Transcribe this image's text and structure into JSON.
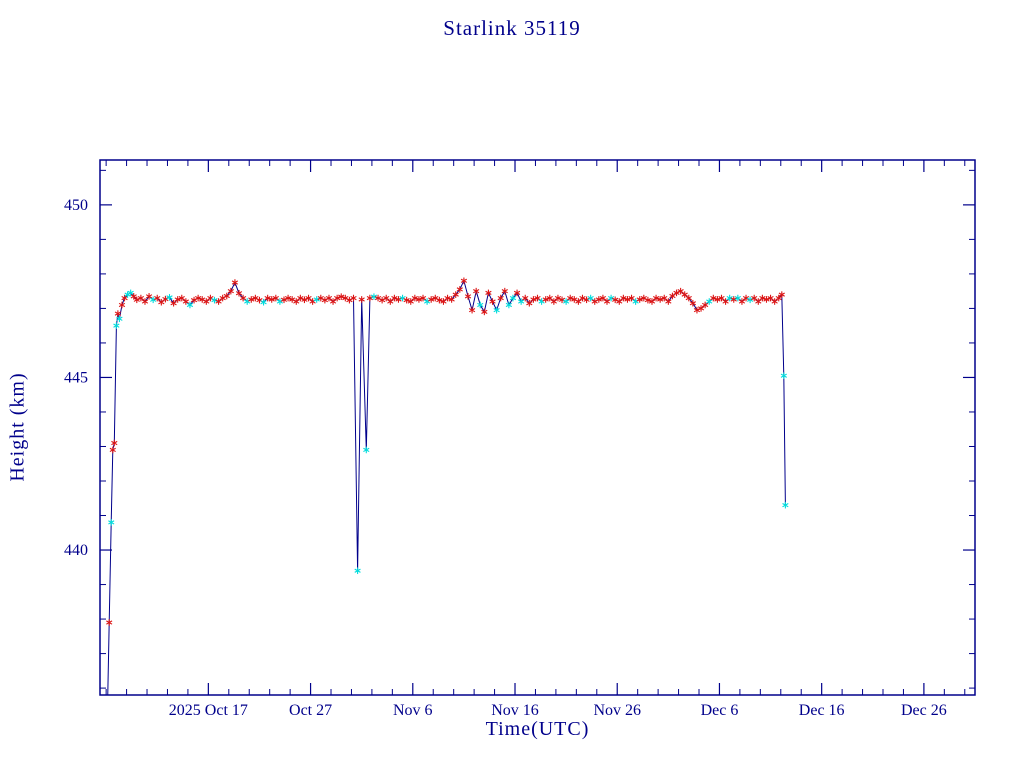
{
  "chart_data": {
    "type": "line",
    "title": "Starlink 35119",
    "xlabel": "Time(UTC)",
    "ylabel": "Height (km)",
    "x_unit": "days since 2025-10-07 00:00 UTC",
    "xlim": [
      -0.6,
      85.0
    ],
    "ylim": [
      435.8,
      451.3
    ],
    "grid": false,
    "legend": "none",
    "x_major_ticks": [
      {
        "value": 10,
        "label": "2025 Oct 17"
      },
      {
        "value": 20,
        "label": "Oct 27"
      },
      {
        "value": 30,
        "label": "Nov 6"
      },
      {
        "value": 40,
        "label": "Nov 16"
      },
      {
        "value": 50,
        "label": "Nov 26"
      },
      {
        "value": 60,
        "label": "Dec 6"
      },
      {
        "value": 70,
        "label": "Dec 16"
      },
      {
        "value": 80,
        "label": "Dec 26"
      }
    ],
    "x_minor_step": 2,
    "y_major_ticks": [
      {
        "value": 440,
        "label": "440"
      },
      {
        "value": 445,
        "label": "445"
      },
      {
        "value": 450,
        "label": "450"
      }
    ],
    "y_minor_step": 1,
    "colors": {
      "axis": "#00008B",
      "line": "#00008B",
      "marker_red": "#DC1414",
      "marker_cyan": "#00DCDC",
      "background": "#FFFFFF"
    },
    "marker": "asterisk",
    "series": [
      {
        "name": "height-km",
        "points": [
          [
            0.15,
            435.7,
            "n"
          ],
          [
            0.3,
            437.9,
            "r"
          ],
          [
            0.5,
            440.8,
            "c"
          ],
          [
            0.65,
            442.9,
            "r"
          ],
          [
            0.8,
            443.1,
            "r"
          ],
          [
            1.0,
            446.5,
            "c"
          ],
          [
            1.15,
            446.85,
            "r"
          ],
          [
            1.3,
            446.7,
            "c"
          ],
          [
            1.55,
            447.1,
            "r"
          ],
          [
            1.8,
            447.3,
            "r"
          ],
          [
            2.1,
            447.4,
            "c"
          ],
          [
            2.4,
            447.45,
            "c"
          ],
          [
            2.7,
            447.35,
            "r"
          ],
          [
            3.0,
            447.25,
            "r"
          ],
          [
            3.4,
            447.3,
            "r"
          ],
          [
            3.8,
            447.2,
            "r"
          ],
          [
            4.2,
            447.35,
            "r"
          ],
          [
            4.6,
            447.25,
            "c"
          ],
          [
            5.0,
            447.3,
            "r"
          ],
          [
            5.4,
            447.18,
            "r"
          ],
          [
            5.8,
            447.27,
            "r"
          ],
          [
            6.2,
            447.32,
            "c"
          ],
          [
            6.6,
            447.15,
            "r"
          ],
          [
            7.0,
            447.26,
            "r"
          ],
          [
            7.4,
            447.3,
            "r"
          ],
          [
            7.8,
            447.2,
            "r"
          ],
          [
            8.2,
            447.1,
            "c"
          ],
          [
            8.6,
            447.24,
            "r"
          ],
          [
            9.0,
            447.3,
            "r"
          ],
          [
            9.4,
            447.26,
            "r"
          ],
          [
            9.8,
            447.2,
            "r"
          ],
          [
            10.2,
            447.3,
            "r"
          ],
          [
            10.6,
            447.24,
            "c"
          ],
          [
            11.0,
            447.2,
            "r"
          ],
          [
            11.4,
            447.3,
            "r"
          ],
          [
            11.8,
            447.36,
            "r"
          ],
          [
            12.2,
            447.5,
            "r"
          ],
          [
            12.6,
            447.75,
            "r"
          ],
          [
            13.0,
            447.44,
            "r"
          ],
          [
            13.4,
            447.3,
            "r"
          ],
          [
            13.8,
            447.2,
            "c"
          ],
          [
            14.2,
            447.26,
            "r"
          ],
          [
            14.6,
            447.3,
            "r"
          ],
          [
            15.0,
            447.24,
            "r"
          ],
          [
            15.4,
            447.18,
            "c"
          ],
          [
            15.8,
            447.3,
            "r"
          ],
          [
            16.2,
            447.26,
            "r"
          ],
          [
            16.6,
            447.3,
            "r"
          ],
          [
            17.0,
            447.2,
            "c"
          ],
          [
            17.4,
            447.25,
            "r"
          ],
          [
            17.8,
            447.3,
            "r"
          ],
          [
            18.2,
            447.26,
            "r"
          ],
          [
            18.6,
            447.2,
            "r"
          ],
          [
            19.0,
            447.3,
            "r"
          ],
          [
            19.4,
            447.25,
            "r"
          ],
          [
            19.8,
            447.3,
            "r"
          ],
          [
            20.2,
            447.2,
            "r"
          ],
          [
            20.6,
            447.26,
            "c"
          ],
          [
            21.0,
            447.3,
            "r"
          ],
          [
            21.4,
            447.24,
            "r"
          ],
          [
            21.8,
            447.3,
            "r"
          ],
          [
            22.2,
            447.2,
            "r"
          ],
          [
            22.6,
            447.3,
            "r"
          ],
          [
            23.0,
            447.34,
            "r"
          ],
          [
            23.4,
            447.3,
            "r"
          ],
          [
            23.8,
            447.24,
            "r"
          ],
          [
            24.2,
            447.3,
            "r"
          ],
          [
            24.6,
            439.4,
            "c"
          ],
          [
            25.0,
            447.26,
            "r"
          ],
          [
            25.45,
            442.9,
            "c"
          ],
          [
            25.8,
            447.3,
            "r"
          ],
          [
            26.2,
            447.34,
            "c"
          ],
          [
            26.6,
            447.3,
            "r"
          ],
          [
            27.0,
            447.24,
            "r"
          ],
          [
            27.4,
            447.3,
            "r"
          ],
          [
            27.8,
            447.2,
            "r"
          ],
          [
            28.2,
            447.3,
            "r"
          ],
          [
            28.6,
            447.26,
            "r"
          ],
          [
            29.0,
            447.3,
            "c"
          ],
          [
            29.4,
            447.24,
            "r"
          ],
          [
            29.8,
            447.2,
            "r"
          ],
          [
            30.2,
            447.3,
            "r"
          ],
          [
            30.6,
            447.26,
            "r"
          ],
          [
            31.0,
            447.3,
            "r"
          ],
          [
            31.4,
            447.2,
            "c"
          ],
          [
            31.8,
            447.26,
            "r"
          ],
          [
            32.2,
            447.3,
            "r"
          ],
          [
            32.6,
            447.24,
            "r"
          ],
          [
            33.0,
            447.2,
            "r"
          ],
          [
            33.4,
            447.3,
            "r"
          ],
          [
            33.8,
            447.26,
            "r"
          ],
          [
            34.2,
            447.4,
            "r"
          ],
          [
            34.6,
            447.55,
            "r"
          ],
          [
            35.0,
            447.8,
            "r"
          ],
          [
            35.4,
            447.35,
            "r"
          ],
          [
            35.8,
            446.95,
            "r"
          ],
          [
            36.2,
            447.5,
            "r"
          ],
          [
            36.6,
            447.1,
            "c"
          ],
          [
            37.0,
            446.9,
            "r"
          ],
          [
            37.4,
            447.45,
            "r"
          ],
          [
            37.8,
            447.2,
            "r"
          ],
          [
            38.2,
            446.95,
            "c"
          ],
          [
            38.6,
            447.3,
            "r"
          ],
          [
            39.0,
            447.5,
            "r"
          ],
          [
            39.4,
            447.1,
            "c"
          ],
          [
            39.8,
            447.3,
            "c"
          ],
          [
            40.2,
            447.45,
            "r"
          ],
          [
            40.6,
            447.2,
            "c"
          ],
          [
            41.0,
            447.3,
            "r"
          ],
          [
            41.4,
            447.15,
            "r"
          ],
          [
            41.8,
            447.26,
            "r"
          ],
          [
            42.2,
            447.3,
            "r"
          ],
          [
            42.6,
            447.2,
            "c"
          ],
          [
            43.0,
            447.26,
            "r"
          ],
          [
            43.4,
            447.3,
            "r"
          ],
          [
            43.8,
            447.2,
            "r"
          ],
          [
            44.2,
            447.3,
            "r"
          ],
          [
            44.6,
            447.25,
            "r"
          ],
          [
            45.0,
            447.2,
            "c"
          ],
          [
            45.4,
            447.3,
            "r"
          ],
          [
            45.8,
            447.26,
            "r"
          ],
          [
            46.2,
            447.2,
            "r"
          ],
          [
            46.6,
            447.3,
            "r"
          ],
          [
            47.0,
            447.25,
            "r"
          ],
          [
            47.4,
            447.3,
            "c"
          ],
          [
            47.8,
            447.2,
            "r"
          ],
          [
            48.2,
            447.26,
            "r"
          ],
          [
            48.6,
            447.3,
            "r"
          ],
          [
            49.0,
            447.2,
            "r"
          ],
          [
            49.4,
            447.3,
            "c"
          ],
          [
            49.8,
            447.25,
            "r"
          ],
          [
            50.2,
            447.2,
            "r"
          ],
          [
            50.6,
            447.3,
            "r"
          ],
          [
            51.0,
            447.26,
            "r"
          ],
          [
            51.4,
            447.3,
            "r"
          ],
          [
            51.8,
            447.2,
            "c"
          ],
          [
            52.2,
            447.26,
            "r"
          ],
          [
            52.6,
            447.3,
            "r"
          ],
          [
            53.0,
            447.24,
            "r"
          ],
          [
            53.4,
            447.2,
            "r"
          ],
          [
            53.8,
            447.3,
            "r"
          ],
          [
            54.2,
            447.26,
            "r"
          ],
          [
            54.6,
            447.3,
            "r"
          ],
          [
            55.0,
            447.2,
            "r"
          ],
          [
            55.4,
            447.36,
            "r"
          ],
          [
            55.8,
            447.45,
            "r"
          ],
          [
            56.2,
            447.5,
            "r"
          ],
          [
            56.6,
            447.4,
            "r"
          ],
          [
            57.0,
            447.3,
            "r"
          ],
          [
            57.4,
            447.15,
            "r"
          ],
          [
            57.8,
            446.95,
            "r"
          ],
          [
            58.2,
            447.0,
            "r"
          ],
          [
            58.6,
            447.1,
            "r"
          ],
          [
            59.0,
            447.2,
            "c"
          ],
          [
            59.4,
            447.3,
            "r"
          ],
          [
            59.8,
            447.26,
            "r"
          ],
          [
            60.2,
            447.3,
            "r"
          ],
          [
            60.6,
            447.2,
            "r"
          ],
          [
            61.0,
            447.3,
            "c"
          ],
          [
            61.4,
            447.26,
            "r"
          ],
          [
            61.8,
            447.3,
            "c"
          ],
          [
            62.2,
            447.2,
            "r"
          ],
          [
            62.6,
            447.3,
            "r"
          ],
          [
            63.0,
            447.25,
            "c"
          ],
          [
            63.4,
            447.3,
            "r"
          ],
          [
            63.8,
            447.2,
            "r"
          ],
          [
            64.2,
            447.3,
            "r"
          ],
          [
            64.6,
            447.26,
            "r"
          ],
          [
            65.0,
            447.3,
            "r"
          ],
          [
            65.4,
            447.2,
            "r"
          ],
          [
            65.8,
            447.3,
            "r"
          ],
          [
            66.1,
            447.4,
            "r"
          ],
          [
            66.3,
            445.05,
            "c"
          ],
          [
            66.45,
            441.3,
            "c"
          ]
        ],
        "marker_color_key": {
          "r": "red observation",
          "c": "cyan observation",
          "n": "no marker"
        }
      }
    ]
  }
}
